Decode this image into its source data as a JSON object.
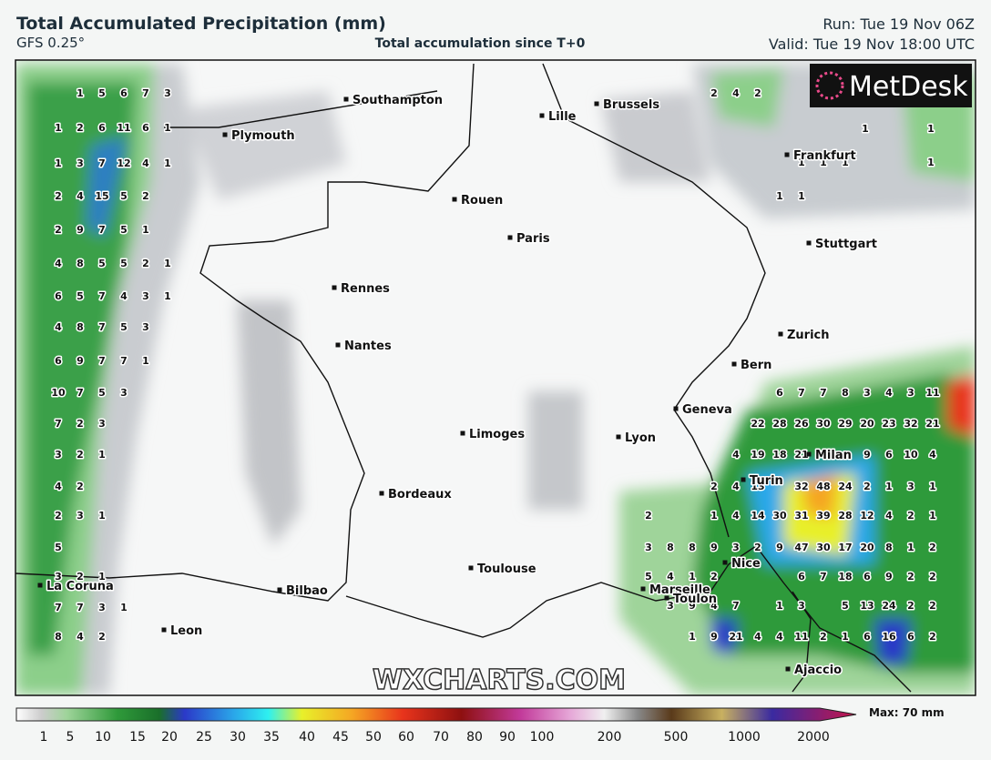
{
  "header": {
    "title": "Total Accumulated Precipitation (mm)",
    "model": "GFS 0.25°",
    "subtitle": "Total accumulation since T+0",
    "run": "Run: Tue 19 Nov 06Z",
    "valid": "Valid: Tue 19 Nov 18:00 UTC"
  },
  "logo": "MetDesk",
  "watermark": "WXCHARTS.COM",
  "cities": [
    "Southampton",
    "Plymouth",
    "Lille",
    "Brussels",
    "Frankfurt",
    "Rouen",
    "Paris",
    "Stuttgart",
    "Rennes",
    "Nantes",
    "Zurich",
    "Bern",
    "Geneva",
    "Milan",
    "Turin",
    "Limoges",
    "Lyon",
    "Bordeaux",
    "Toulouse",
    "Nice",
    "Marseille",
    "Toulon",
    "La Coruna",
    "Bilbao",
    "Leon",
    "Ajaccio"
  ],
  "precip_labels": [
    [
      1,
      5,
      6,
      7,
      3
    ],
    [
      1,
      2,
      6,
      11,
      6,
      1
    ],
    [
      1,
      3,
      7,
      12,
      4,
      1
    ],
    [
      2,
      4,
      15,
      5,
      2
    ],
    [
      2,
      9,
      7,
      5,
      1
    ],
    [
      4,
      8,
      5,
      5,
      2,
      1
    ],
    [
      6,
      5,
      7,
      4,
      3,
      1
    ],
    [
      4,
      8,
      7,
      5,
      3
    ],
    [
      6,
      9,
      7,
      7,
      1
    ],
    [
      10,
      7,
      5,
      3
    ],
    [
      7,
      2,
      3
    ],
    [
      3,
      2,
      1
    ],
    [
      4,
      2
    ],
    [
      2,
      3,
      1
    ],
    [
      5
    ],
    [
      3,
      2,
      1
    ],
    [
      7,
      7,
      3,
      1
    ],
    [
      8,
      4,
      2
    ],
    [
      2,
      4,
      2
    ],
    [
      1,
      1
    ],
    [
      1,
      1,
      1,
      1
    ],
    [
      1,
      1
    ],
    [
      6,
      7,
      7,
      8,
      3,
      4,
      3,
      11
    ],
    [
      22,
      28,
      26,
      30,
      29,
      20,
      23,
      32,
      21
    ],
    [
      4,
      19,
      18,
      21,
      9,
      6,
      10,
      4
    ],
    [
      2,
      4,
      13,
      32,
      48,
      24,
      2,
      1,
      3,
      1
    ],
    [
      2,
      1,
      4,
      14,
      30,
      31,
      39,
      28,
      12,
      4,
      2,
      1
    ],
    [
      3,
      8,
      8,
      9,
      3,
      2,
      9,
      47,
      30,
      17,
      20,
      8,
      1,
      2
    ],
    [
      5,
      4,
      1,
      2,
      6,
      7,
      18,
      6,
      9,
      2,
      2
    ],
    [
      3,
      9,
      4,
      7,
      1,
      3,
      5,
      13,
      24,
      2,
      2
    ],
    [
      1,
      9,
      21,
      4,
      4,
      11,
      2,
      1,
      6,
      16,
      6,
      2
    ]
  ],
  "colorbar": {
    "ticks": [
      1,
      5,
      10,
      15,
      20,
      25,
      30,
      35,
      40,
      45,
      50,
      60,
      70,
      80,
      90,
      100,
      200,
      500,
      1000,
      2000
    ],
    "max_label": "Max: 70 mm"
  }
}
